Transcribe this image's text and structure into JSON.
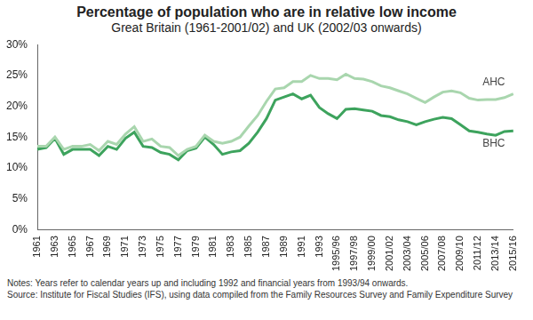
{
  "chart_data": {
    "type": "line",
    "title": "Percentage of population who are in relative low income",
    "subtitle": "Great Britain (1961-2001/02) and UK (2002/03 onwards)",
    "notes": [
      "Notes: Years refer to calendar years up and including 1992 and financial years from 1993/94 onwards.",
      "Source: Institute for Fiscal Studies (IFS), using data compiled from the Family Resources Survey and Family Expenditure Survey"
    ],
    "categories": [
      "1961",
      null,
      "1963",
      null,
      "1965",
      null,
      "1967",
      null,
      "1969",
      null,
      "1971",
      null,
      "1973",
      null,
      "1975",
      null,
      "1977",
      null,
      "1979",
      null,
      "1981",
      null,
      "1983",
      null,
      "1985",
      null,
      "1987",
      null,
      "1989",
      null,
      "1991",
      null,
      "1993",
      null,
      "1995/96",
      null,
      "1997/98",
      null,
      "1999/00",
      null,
      "2001/02",
      null,
      "2003/04",
      null,
      "2005/06",
      null,
      "2007/08",
      null,
      "2009/10",
      null,
      "2011/12",
      null,
      "2013/14",
      null,
      "2015/16"
    ],
    "series": [
      {
        "name": "AHC",
        "color": "#a9d6ae",
        "values": [
          13.5,
          13.5,
          15.0,
          13.0,
          13.5,
          13.5,
          13.8,
          12.8,
          14.3,
          13.8,
          15.5,
          16.7,
          14.3,
          14.7,
          13.5,
          13.3,
          12.0,
          13.0,
          13.5,
          15.3,
          14.3,
          14.0,
          14.3,
          15.0,
          16.8,
          18.5,
          20.8,
          22.8,
          23.0,
          24.0,
          24.0,
          25.0,
          24.5,
          24.5,
          24.3,
          25.2,
          24.5,
          24.4,
          24.0,
          23.3,
          23.0,
          22.5,
          22.0,
          21.3,
          20.6,
          21.5,
          22.3,
          22.5,
          22.2,
          21.3,
          21.0,
          21.1,
          21.1,
          21.4,
          22.0
        ]
      },
      {
        "name": "BHC",
        "color": "#3da35d",
        "values": [
          13.0,
          13.3,
          14.8,
          12.2,
          13.0,
          13.0,
          13.0,
          12.0,
          13.5,
          13.0,
          14.8,
          15.8,
          13.5,
          13.3,
          12.5,
          12.2,
          11.3,
          12.8,
          13.2,
          15.0,
          13.8,
          12.2,
          12.6,
          12.8,
          14.0,
          15.8,
          18.0,
          21.0,
          21.5,
          22.0,
          21.2,
          21.8,
          19.8,
          18.8,
          18.0,
          19.5,
          19.6,
          19.4,
          19.2,
          18.5,
          18.3,
          17.8,
          17.5,
          17.0,
          17.5,
          17.9,
          18.2,
          18.0,
          17.0,
          16.0,
          15.8,
          15.5,
          15.3,
          15.9,
          16.0
        ]
      }
    ],
    "ylim": [
      0,
      30
    ],
    "yticks": [
      {
        "value": 0,
        "label": "0%"
      },
      {
        "value": 5,
        "label": "5%"
      },
      {
        "value": 10,
        "label": "10%"
      },
      {
        "value": 15,
        "label": "15%"
      },
      {
        "value": 20,
        "label": "20%"
      },
      {
        "value": 25,
        "label": "25%"
      },
      {
        "value": 30,
        "label": "30%"
      }
    ],
    "grid": false
  }
}
